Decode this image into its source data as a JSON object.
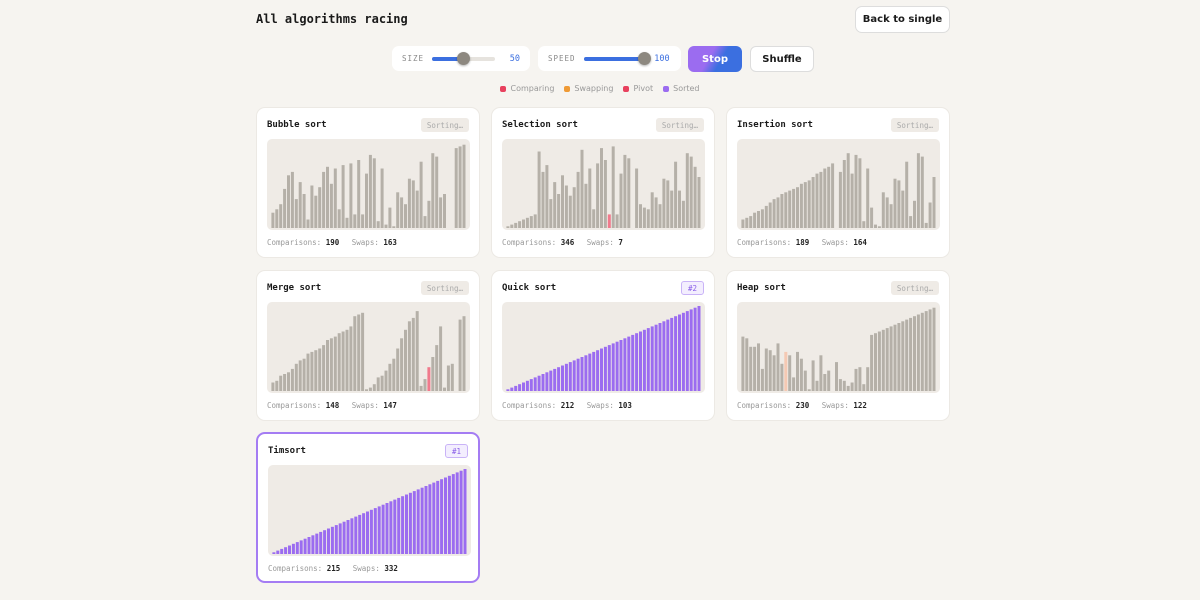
{
  "header": {
    "title": "All algorithms racing",
    "back_label": "Back to single"
  },
  "controls": {
    "size": {
      "label": "SIZE",
      "value": 50,
      "min": 5,
      "max": 100
    },
    "speed": {
      "label": "SPEED",
      "value": 100,
      "min": 1,
      "max": 100
    },
    "stop_label": "Stop",
    "shuffle_label": "Shuffle"
  },
  "legend": [
    {
      "label": "Comparing",
      "color": "#e8415e"
    },
    {
      "label": "Swapping",
      "color": "#ef9a35"
    },
    {
      "label": "Pivot",
      "color": "#e8415e"
    },
    {
      "label": "Sorted",
      "color": "#9b6cf0"
    }
  ],
  "colors": {
    "bar": "#b5b0a8",
    "sorted": "#9b6cf0",
    "comparing": "#f07a8c",
    "swapping": "#f5c9b3"
  },
  "stats_labels": {
    "comparisons": "Comparisons:",
    "swaps": "Swaps:"
  },
  "algorithms": [
    {
      "name": "Bubble sort",
      "status": "Sorting…",
      "comparisons": "190",
      "swaps": "163",
      "bars": [
        9,
        11,
        14,
        23,
        31,
        33,
        17,
        27,
        20,
        5,
        25,
        19,
        24,
        33,
        36,
        26,
        35,
        11,
        37,
        6,
        38,
        8,
        40,
        8,
        32,
        43,
        41,
        4,
        35,
        2,
        12,
        1,
        21,
        18,
        14,
        29,
        28,
        22,
        39,
        7,
        16,
        44,
        42,
        18,
        20,
        0,
        0,
        47,
        48,
        49
      ],
      "highlight": {}
    },
    {
      "name": "Selection sort",
      "status": "Sorting…",
      "comparisons": "346",
      "swaps": "7",
      "bars": [
        1,
        2,
        3,
        4,
        5,
        6,
        7,
        8,
        45,
        33,
        37,
        17,
        27,
        20,
        31,
        25,
        19,
        24,
        33,
        46,
        26,
        35,
        11,
        38,
        47,
        40,
        8,
        48,
        8,
        32,
        43,
        41,
        0,
        35,
        14,
        12,
        11,
        21,
        18,
        14,
        29,
        28,
        22,
        39,
        22,
        16,
        44,
        42,
        36,
        30
      ],
      "highlight": {
        "26": "comparing"
      }
    },
    {
      "name": "Insertion sort",
      "status": "Sorting…",
      "comparisons": "189",
      "swaps": "164",
      "bars": [
        5,
        6,
        7,
        9,
        10,
        11,
        13,
        15,
        17,
        18,
        20,
        21,
        22,
        23,
        24,
        26,
        27,
        28,
        30,
        32,
        33,
        35,
        36,
        38,
        0,
        33,
        40,
        44,
        32,
        43,
        41,
        4,
        35,
        12,
        2,
        1,
        21,
        18,
        14,
        29,
        28,
        22,
        39,
        7,
        16,
        44,
        42,
        3,
        15,
        30
      ],
      "highlight": {}
    },
    {
      "name": "Merge sort",
      "status": "Sorting…",
      "comparisons": "148",
      "swaps": "147",
      "bars": [
        5,
        6,
        9,
        10,
        11,
        13,
        16,
        18,
        19,
        22,
        23,
        24,
        25,
        27,
        30,
        31,
        32,
        34,
        35,
        36,
        38,
        44,
        45,
        46,
        1,
        2,
        4,
        8,
        9,
        12,
        16,
        19,
        25,
        31,
        36,
        41,
        43,
        47,
        3,
        7,
        14,
        20,
        27,
        38,
        2,
        15,
        16,
        0,
        42,
        44
      ],
      "highlight": {
        "40": "comparing"
      }
    },
    {
      "name": "Quick sort",
      "status": "#2",
      "rank": true,
      "comparisons": "212",
      "swaps": "103",
      "sorted": true,
      "highlight": {}
    },
    {
      "name": "Heap sort",
      "status": "Sorting…",
      "comparisons": "230",
      "swaps": "122",
      "bars": [
        32,
        31,
        26,
        26,
        28,
        13,
        25,
        24,
        21,
        28,
        16,
        23,
        21,
        8,
        23,
        19,
        12,
        1,
        18,
        6,
        21,
        10,
        12,
        0,
        17,
        7,
        6,
        3,
        5,
        13,
        14,
        4,
        14,
        33,
        34,
        35,
        36,
        37,
        38,
        39,
        40,
        41,
        42,
        43,
        44,
        45,
        46,
        47,
        48,
        49
      ],
      "highlight": {
        "11": "swapping"
      }
    },
    {
      "name": "Timsort",
      "status": "#1",
      "rank": true,
      "winner": true,
      "comparisons": "215",
      "swaps": "332",
      "sorted": true,
      "highlight": {}
    }
  ]
}
